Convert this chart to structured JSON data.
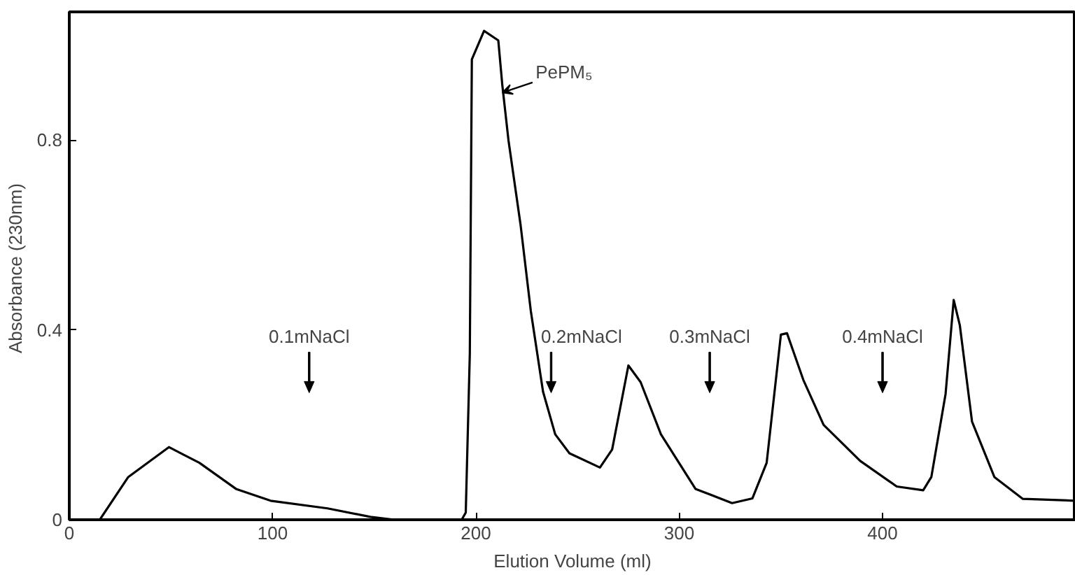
{
  "chart_data": {
    "type": "line",
    "xlabel": "Elution Volume (ml)",
    "ylabel": "Absorbance  (230nm)",
    "x": [
      0,
      15,
      29,
      49,
      64,
      82,
      99,
      127,
      148,
      160,
      193,
      195,
      197,
      198,
      204,
      211,
      213,
      216,
      222,
      227,
      233,
      239,
      246,
      261,
      267,
      275,
      281,
      291,
      308,
      326,
      336,
      343,
      350,
      353,
      361,
      371,
      389,
      407,
      420,
      424,
      431,
      435,
      438,
      444,
      455,
      469,
      495
    ],
    "series": [
      {
        "color": "#000000",
        "values": [
          0,
          0,
          0.09,
          0.153,
          0.12,
          0.065,
          0.04,
          0.024,
          0.006,
          0,
          0,
          0.015,
          0.35,
          0.97,
          1.03,
          1.01,
          0.915,
          0.8,
          0.62,
          0.44,
          0.27,
          0.18,
          0.14,
          0.11,
          0.148,
          0.325,
          0.29,
          0.18,
          0.065,
          0.035,
          0.045,
          0.12,
          0.39,
          0.393,
          0.295,
          0.2,
          0.124,
          0.07,
          0.062,
          0.09,
          0.265,
          0.463,
          0.41,
          0.207,
          0.09,
          0.044,
          0.04
        ]
      }
    ],
    "xlim": [
      0,
      495
    ],
    "ylim": [
      0,
      1.07
    ],
    "xticks": [
      0,
      100,
      200,
      300,
      400
    ],
    "yticks": [
      0,
      0.4,
      0.8
    ],
    "annotations": [
      {
        "text": "PePM₅",
        "x": 213,
        "y": 0.9
      }
    ],
    "ref_lines": [
      {
        "axis": "x",
        "value": 118,
        "label": "0.1mNaCl"
      },
      {
        "axis": "x",
        "value": 237,
        "label": "0.2mNaCl"
      },
      {
        "axis": "x",
        "value": 315,
        "label": "0.3mNaCl"
      },
      {
        "axis": "x",
        "value": 400,
        "label": "0.4mNaCl"
      }
    ]
  }
}
